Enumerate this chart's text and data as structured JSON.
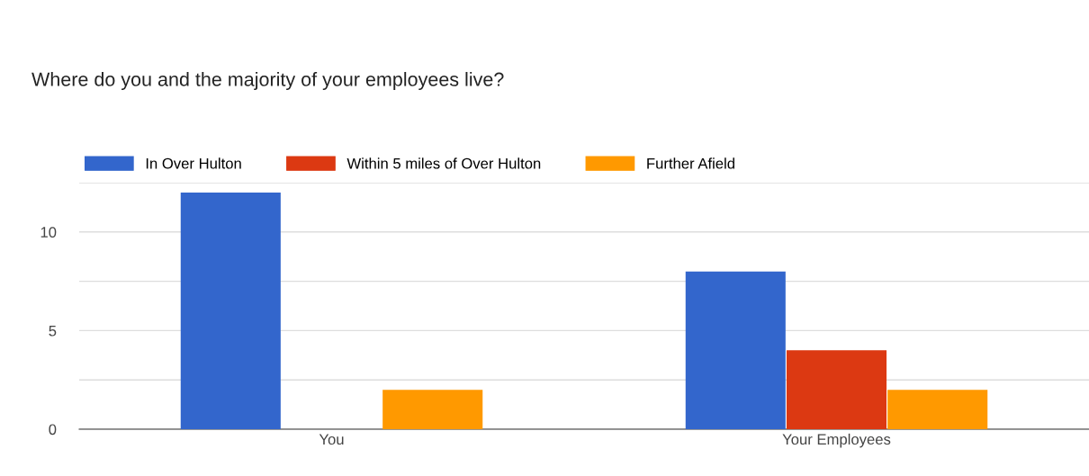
{
  "chart_data": {
    "type": "bar",
    "title": "Where do you and the majority of your employees live?",
    "categories": [
      "You",
      "Your Employees"
    ],
    "series": [
      {
        "name": "In Over Hulton",
        "color": "#3366cc",
        "values": [
          12,
          8
        ]
      },
      {
        "name": "Within 5 miles of Over Hulton",
        "color": "#dc3912",
        "values": [
          0,
          4
        ]
      },
      {
        "name": "Further Afield",
        "color": "#ff9900",
        "values": [
          2,
          2
        ]
      }
    ],
    "ylim": [
      0,
      12.5
    ],
    "yticks": [
      0,
      {
        "value": 2.5,
        "label": null
      },
      5,
      {
        "value": 7.5,
        "label": null
      },
      10,
      {
        "value": 12.5,
        "label": null
      }
    ],
    "grid": "y",
    "legend": "top left"
  }
}
